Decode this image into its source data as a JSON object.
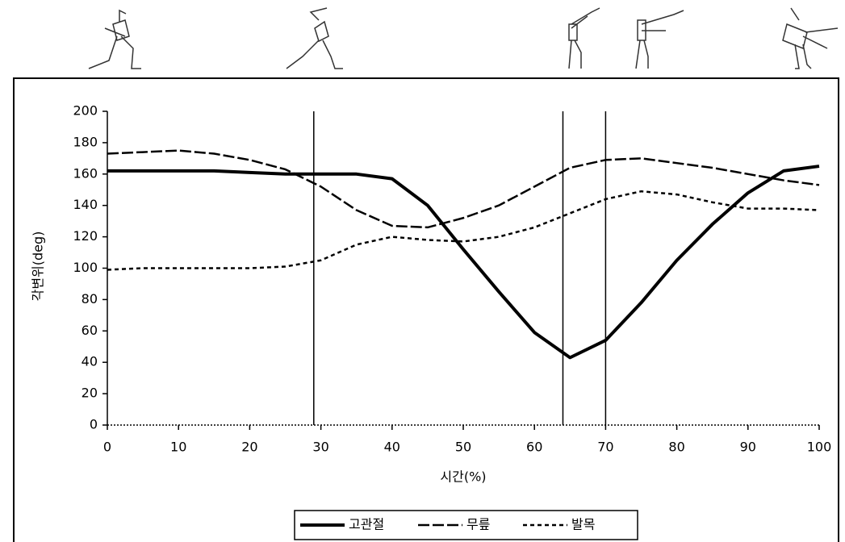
{
  "chart_data": {
    "type": "line",
    "y_label": "각변위(deg)",
    "x_label": "시간(%)",
    "x": [
      0,
      5,
      10,
      15,
      20,
      25,
      30,
      35,
      40,
      45,
      50,
      55,
      60,
      65,
      70,
      75,
      80,
      85,
      90,
      95,
      100
    ],
    "series": [
      {
        "name": "고관절",
        "color": "#000000",
        "values": [
          162,
          162,
          162,
          162,
          161,
          160,
          160,
          160,
          157,
          140,
          112,
          85,
          59,
          43,
          54,
          78,
          105,
          128,
          148,
          162,
          165
        ]
      },
      {
        "name": "무릎",
        "color": "#000000",
        "values": [
          173,
          174,
          175,
          173,
          169,
          163,
          152,
          137,
          127,
          126,
          132,
          140,
          152,
          164,
          169,
          170,
          167,
          164,
          160,
          156,
          153
        ]
      },
      {
        "name": "발목",
        "color": "#000000",
        "values": [
          99,
          100,
          100,
          100,
          100,
          101,
          105,
          115,
          120,
          118,
          117,
          120,
          126,
          135,
          144,
          149,
          147,
          142,
          138,
          138,
          137
        ]
      }
    ],
    "vlines": [
      29,
      64,
      70
    ],
    "xlim": [
      0,
      100
    ],
    "xticks": [
      0,
      10,
      20,
      30,
      40,
      50,
      60,
      70,
      80,
      90,
      100
    ],
    "ylim": [
      0,
      200
    ],
    "yticks": [
      0,
      20,
      40,
      60,
      80,
      100,
      120,
      140,
      160,
      180,
      200
    ],
    "grid": false
  }
}
